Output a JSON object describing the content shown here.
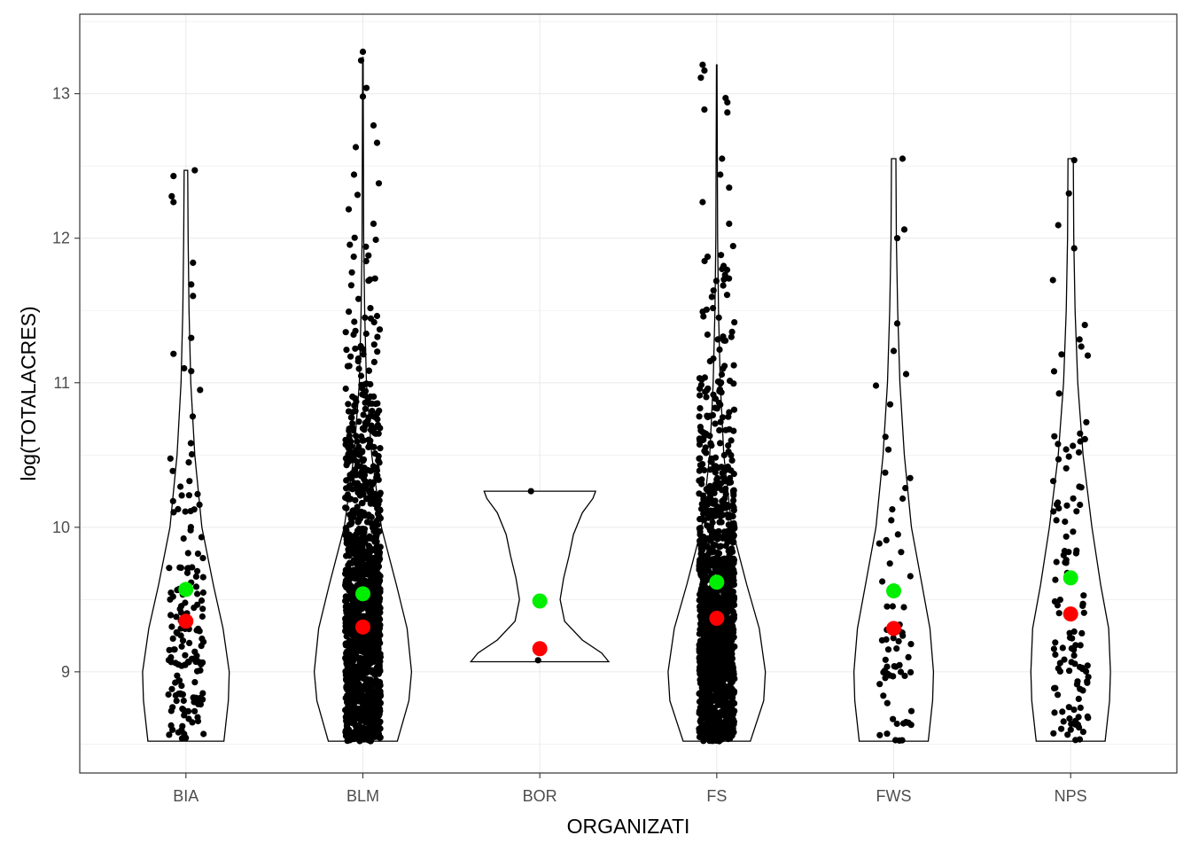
{
  "chart_data": {
    "type": "violin",
    "title": "",
    "xlabel": "ORGANIZATI",
    "ylabel": "log(TOTALACRES)",
    "categories": [
      "BIA",
      "BLM",
      "BOR",
      "FS",
      "FWS",
      "NPS"
    ],
    "ylim": [
      8.3,
      13.55
    ],
    "yticks": [
      9,
      10,
      11,
      12,
      13
    ],
    "grid": true,
    "legend": "none",
    "colors": {
      "points": "#000000",
      "mean_marker": "#00ee00",
      "median_marker": "#ff0000",
      "violin_fill": "#ffffff",
      "violin_stroke": "#000000",
      "grid": "#ebebeb",
      "panel_border": "#333333"
    },
    "violins": [
      {
        "category": "BIA",
        "min": 8.52,
        "max": 12.47,
        "profile": [
          [
            8.52,
            0.43
          ],
          [
            8.8,
            0.48
          ],
          [
            9.0,
            0.49
          ],
          [
            9.3,
            0.42
          ],
          [
            9.6,
            0.31
          ],
          [
            10.0,
            0.18
          ],
          [
            10.5,
            0.1
          ],
          [
            11.0,
            0.055
          ],
          [
            11.5,
            0.035
          ],
          [
            12.0,
            0.025
          ],
          [
            12.47,
            0.02
          ]
        ]
      },
      {
        "category": "BLM",
        "min": 8.52,
        "max": 13.25,
        "profile": [
          [
            8.52,
            0.39
          ],
          [
            8.8,
            0.52
          ],
          [
            9.0,
            0.55
          ],
          [
            9.3,
            0.5
          ],
          [
            9.6,
            0.38
          ],
          [
            10.0,
            0.21
          ],
          [
            10.5,
            0.1
          ],
          [
            11.0,
            0.04
          ],
          [
            11.5,
            0.02
          ],
          [
            12.0,
            0.009
          ],
          [
            13.0,
            0.004
          ],
          [
            13.25,
            0.003
          ]
        ]
      },
      {
        "category": "BOR",
        "min": 9.07,
        "max": 10.25,
        "profile": [
          [
            9.07,
            0.78
          ],
          [
            9.13,
            0.7
          ],
          [
            9.22,
            0.48
          ],
          [
            9.35,
            0.28
          ],
          [
            9.5,
            0.23
          ],
          [
            9.65,
            0.27
          ],
          [
            9.8,
            0.33
          ],
          [
            9.95,
            0.38
          ],
          [
            10.1,
            0.48
          ],
          [
            10.2,
            0.6
          ],
          [
            10.25,
            0.63
          ]
        ]
      },
      {
        "category": "FS",
        "min": 8.52,
        "max": 13.2,
        "profile": [
          [
            8.52,
            0.38
          ],
          [
            8.8,
            0.53
          ],
          [
            9.0,
            0.55
          ],
          [
            9.3,
            0.48
          ],
          [
            9.6,
            0.34
          ],
          [
            10.0,
            0.17
          ],
          [
            10.5,
            0.08
          ],
          [
            11.0,
            0.04
          ],
          [
            11.5,
            0.02
          ],
          [
            12.0,
            0.01
          ],
          [
            13.0,
            0.004
          ],
          [
            13.2,
            0.003
          ]
        ]
      },
      {
        "category": "FWS",
        "min": 8.52,
        "max": 12.55,
        "profile": [
          [
            8.52,
            0.39
          ],
          [
            8.8,
            0.44
          ],
          [
            9.0,
            0.45
          ],
          [
            9.3,
            0.41
          ],
          [
            9.6,
            0.32
          ],
          [
            10.0,
            0.2
          ],
          [
            10.5,
            0.12
          ],
          [
            11.0,
            0.07
          ],
          [
            11.5,
            0.045
          ],
          [
            12.0,
            0.03
          ],
          [
            12.55,
            0.025
          ]
        ]
      },
      {
        "category": "NPS",
        "min": 8.52,
        "max": 12.55,
        "profile": [
          [
            8.52,
            0.39
          ],
          [
            8.8,
            0.44
          ],
          [
            9.0,
            0.45
          ],
          [
            9.3,
            0.43
          ],
          [
            9.6,
            0.34
          ],
          [
            10.0,
            0.24
          ],
          [
            10.5,
            0.14
          ],
          [
            11.0,
            0.08
          ],
          [
            11.5,
            0.05
          ],
          [
            12.0,
            0.035
          ],
          [
            12.55,
            0.03
          ]
        ]
      }
    ],
    "points": [
      {
        "category": "BIA",
        "n": 160,
        "min": 8.52,
        "max": 12.47,
        "outliers": [
          {
            "y": 12.47,
            "dx": 0.05
          },
          {
            "y": 12.43,
            "dx": -0.07
          },
          {
            "y": 12.29,
            "dx": -0.08
          },
          {
            "y": 12.25,
            "dx": -0.07
          },
          {
            "y": 11.83,
            "dx": 0.04
          },
          {
            "y": 11.68,
            "dx": 0.03
          },
          {
            "y": 11.6,
            "dx": 0.04
          },
          {
            "y": 11.31,
            "dx": 0.03
          },
          {
            "y": 11.2,
            "dx": -0.07
          },
          {
            "y": 11.1,
            "dx": -0.01
          },
          {
            "y": 11.08,
            "dx": 0.03
          },
          {
            "y": 10.95,
            "dx": 0.08
          }
        ]
      },
      {
        "category": "BLM",
        "n": 1500,
        "min": 8.52,
        "max": 13.29,
        "outliers": [
          {
            "y": 13.29,
            "dx": 0.0
          },
          {
            "y": 13.23,
            "dx": -0.01
          },
          {
            "y": 13.04,
            "dx": 0.02
          },
          {
            "y": 12.98,
            "dx": 0.0
          },
          {
            "y": 12.78,
            "dx": 0.06
          },
          {
            "y": 12.66,
            "dx": 0.08
          },
          {
            "y": 12.63,
            "dx": -0.04
          },
          {
            "y": 12.44,
            "dx": -0.05
          },
          {
            "y": 12.38,
            "dx": 0.09
          },
          {
            "y": 12.3,
            "dx": -0.03
          },
          {
            "y": 12.2,
            "dx": -0.08
          },
          {
            "y": 12.1,
            "dx": 0.06
          }
        ]
      },
      {
        "category": "BOR",
        "n": 5,
        "min": 9.07,
        "max": 10.25,
        "outliers": [
          {
            "y": 10.25,
            "dx": -0.05
          },
          {
            "y": 9.16,
            "dx": 0.0
          },
          {
            "y": 9.15,
            "dx": 0.02
          },
          {
            "y": 9.14,
            "dx": -0.01
          },
          {
            "y": 9.08,
            "dx": -0.01
          }
        ]
      },
      {
        "category": "FS",
        "n": 1400,
        "min": 8.52,
        "max": 13.2,
        "outliers": [
          {
            "y": 13.2,
            "dx": -0.08
          },
          {
            "y": 13.16,
            "dx": -0.07
          },
          {
            "y": 13.11,
            "dx": -0.09
          },
          {
            "y": 12.97,
            "dx": 0.05
          },
          {
            "y": 12.94,
            "dx": 0.06
          },
          {
            "y": 12.89,
            "dx": -0.07
          },
          {
            "y": 12.87,
            "dx": 0.06
          },
          {
            "y": 12.55,
            "dx": 0.03
          },
          {
            "y": 12.44,
            "dx": 0.02
          },
          {
            "y": 12.35,
            "dx": 0.07
          },
          {
            "y": 12.25,
            "dx": -0.08
          },
          {
            "y": 12.1,
            "dx": 0.07
          }
        ]
      },
      {
        "category": "FWS",
        "n": 70,
        "min": 8.52,
        "max": 12.55,
        "outliers": [
          {
            "y": 12.55,
            "dx": 0.05
          },
          {
            "y": 12.06,
            "dx": 0.06
          },
          {
            "y": 12.0,
            "dx": 0.02
          },
          {
            "y": 11.41,
            "dx": 0.02
          },
          {
            "y": 11.22,
            "dx": 0.0
          },
          {
            "y": 11.06,
            "dx": 0.07
          },
          {
            "y": 10.98,
            "dx": -0.1
          },
          {
            "y": 10.85,
            "dx": -0.02
          }
        ]
      },
      {
        "category": "NPS",
        "n": 120,
        "min": 8.52,
        "max": 12.55,
        "outliers": [
          {
            "y": 12.54,
            "dx": 0.02
          },
          {
            "y": 12.31,
            "dx": -0.01
          },
          {
            "y": 12.09,
            "dx": -0.07
          },
          {
            "y": 11.93,
            "dx": 0.02
          },
          {
            "y": 11.71,
            "dx": -0.1
          },
          {
            "y": 11.4,
            "dx": 0.08
          },
          {
            "y": 11.3,
            "dx": 0.05
          },
          {
            "y": 11.25,
            "dx": 0.06
          }
        ]
      }
    ],
    "mean_values": [
      9.57,
      9.54,
      9.49,
      9.62,
      9.56,
      9.65
    ],
    "median_values": [
      9.35,
      9.31,
      9.16,
      9.37,
      9.3,
      9.4
    ]
  }
}
